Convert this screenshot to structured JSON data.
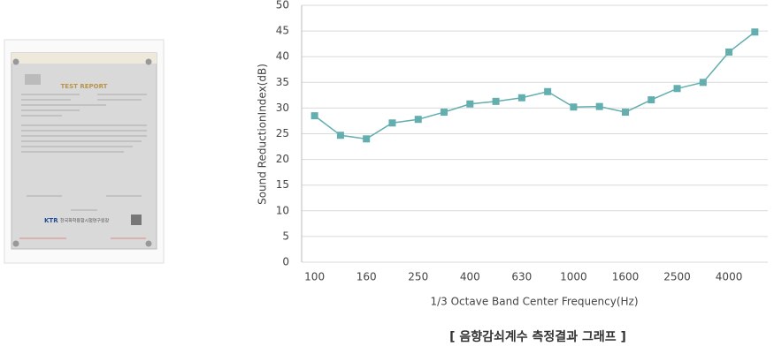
{
  "document": {
    "title": "TEST REPORT",
    "logo": "KTR",
    "issuer": "한국화학융합시험연구원장"
  },
  "chart_data": {
    "type": "line",
    "y_label": "Sound ReductionIndex(dB)",
    "x_label": "1/3 Octave Band Center Frequency(Hz)",
    "categories": [
      "100",
      null,
      "160",
      null,
      "250",
      null,
      "400",
      null,
      "630",
      null,
      "1000",
      null,
      "1600",
      null,
      "2500",
      null,
      "4000",
      null
    ],
    "series": [
      {
        "name": "Sound ReductionIndex",
        "color": "#63aeae",
        "values": [
          28.5,
          24.7,
          24.0,
          27.1,
          27.8,
          29.2,
          30.8,
          31.3,
          32.0,
          33.2,
          30.2,
          30.3,
          29.2,
          31.6,
          33.8,
          35.0,
          40.9,
          44.8
        ]
      }
    ],
    "ylim": [
      0,
      50
    ],
    "yticks": [
      0,
      5,
      10,
      15,
      20,
      25,
      30,
      35,
      40,
      45,
      50
    ],
    "grid": true
  },
  "caption": "[ 음향감쇠계수 측정결과 그래프 ]"
}
